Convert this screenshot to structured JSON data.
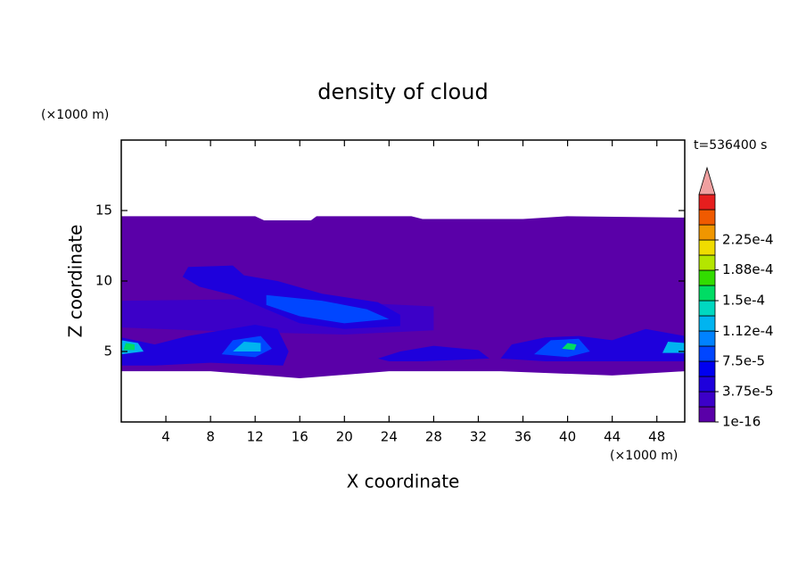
{
  "chart_data": {
    "type": "contour",
    "title": "density of cloud",
    "x_label": "X coordinate",
    "y_label": "Z coordinate",
    "x_unit": "(×1000 m)",
    "y_unit": "(×1000 m)",
    "time_label": "t=536400 s",
    "xlim": [
      0,
      50.5
    ],
    "ylim": [
      0,
      20
    ],
    "xticks": [
      4,
      8,
      12,
      16,
      20,
      24,
      28,
      32,
      36,
      40,
      44,
      48
    ],
    "yticks": [
      5,
      10,
      15
    ],
    "colorbar_ticks": [
      {
        "value": 1e-16,
        "label": "1e-16"
      },
      {
        "value": 3.75e-05,
        "label": "3.75e-5"
      },
      {
        "value": 7.5e-05,
        "label": "7.5e-5"
      },
      {
        "value": 0.000112,
        "label": "1.12e-4"
      },
      {
        "value": 0.00015,
        "label": "1.5e-4"
      },
      {
        "value": 0.000188,
        "label": "1.88e-4"
      },
      {
        "value": 0.000225,
        "label": "2.25e-4"
      }
    ],
    "colors": [
      "#5a00a8",
      "#3c00c8",
      "#1e00dc",
      "#0000f0",
      "#0046ff",
      "#0082ff",
      "#00b4f0",
      "#00d8c0",
      "#00dc64",
      "#32dc00",
      "#b4e600",
      "#f0dc00",
      "#f09600",
      "#f05a00",
      "#e61e1e"
    ],
    "over_color": "#f0a0a0",
    "regions": [
      {
        "value": 1e-16,
        "points": [
          [
            0,
            3.6
          ],
          [
            0,
            14.6
          ],
          [
            12,
            14.6
          ],
          [
            12.8,
            14.3
          ],
          [
            17,
            14.3
          ],
          [
            17.5,
            14.6
          ],
          [
            26,
            14.6
          ],
          [
            27,
            14.4
          ],
          [
            36,
            14.4
          ],
          [
            40,
            14.6
          ],
          [
            50.5,
            14.5
          ],
          [
            50.5,
            3.6
          ],
          [
            44,
            3.3
          ],
          [
            34,
            3.6
          ],
          [
            24,
            3.6
          ],
          [
            16,
            3.1
          ],
          [
            8,
            3.6
          ],
          [
            0,
            3.6
          ]
        ]
      },
      {
        "value": 1.875e-05,
        "points": [
          [
            0,
            6.7
          ],
          [
            0,
            8.6
          ],
          [
            10,
            8.7
          ],
          [
            20,
            8.5
          ],
          [
            28,
            8.2
          ],
          [
            28,
            6.5
          ],
          [
            20,
            6.2
          ],
          [
            10,
            6.4
          ]
        ]
      },
      {
        "value": 3.75e-05,
        "points": [
          [
            5.5,
            10.3
          ],
          [
            6,
            11
          ],
          [
            10,
            11.1
          ],
          [
            11,
            10.4
          ],
          [
            14,
            10
          ],
          [
            18,
            9.1
          ],
          [
            23,
            8.5
          ],
          [
            25,
            7.6
          ],
          [
            25,
            6.8
          ],
          [
            20,
            6.6
          ],
          [
            16,
            7
          ],
          [
            13,
            8
          ],
          [
            10,
            9
          ],
          [
            7,
            9.6
          ]
        ]
      },
      {
        "value": 3.75e-05,
        "points": [
          [
            0,
            4
          ],
          [
            0,
            6
          ],
          [
            3,
            5.5
          ],
          [
            6,
            6.1
          ],
          [
            9,
            6.5
          ],
          [
            12,
            6.9
          ],
          [
            14,
            6.6
          ],
          [
            15,
            5
          ],
          [
            14.5,
            4
          ],
          [
            8,
            4.2
          ],
          [
            3,
            4
          ]
        ]
      },
      {
        "value": 3.75e-05,
        "points": [
          [
            23,
            4.5
          ],
          [
            25,
            5
          ],
          [
            28,
            5.4
          ],
          [
            32,
            5.1
          ],
          [
            33,
            4.5
          ],
          [
            27,
            4.3
          ],
          [
            24,
            4.3
          ]
        ]
      },
      {
        "value": 3.75e-05,
        "points": [
          [
            34,
            4.5
          ],
          [
            35,
            5.5
          ],
          [
            38,
            6
          ],
          [
            41,
            6.1
          ],
          [
            44,
            5.8
          ],
          [
            47,
            6.6
          ],
          [
            50.5,
            6.1
          ],
          [
            50.5,
            4.3
          ],
          [
            44,
            4.3
          ],
          [
            38,
            4.3
          ]
        ]
      },
      {
        "value": 7.5e-05,
        "points": [
          [
            13,
            9
          ],
          [
            18,
            8.6
          ],
          [
            22,
            8
          ],
          [
            24,
            7.3
          ],
          [
            20,
            7
          ],
          [
            16,
            7.5
          ],
          [
            13,
            8.3
          ]
        ]
      },
      {
        "value": 7.5e-05,
        "points": [
          [
            9,
            4.8
          ],
          [
            10,
            5.8
          ],
          [
            12.5,
            6.1
          ],
          [
            13.5,
            5.2
          ],
          [
            12,
            4.6
          ]
        ]
      },
      {
        "value": 7.5e-05,
        "points": [
          [
            37,
            4.8
          ],
          [
            38.5,
            5.8
          ],
          [
            41,
            5.9
          ],
          [
            42,
            5
          ],
          [
            40,
            4.6
          ]
        ]
      },
      {
        "value": 0.0001125,
        "points": [
          [
            0,
            4.8
          ],
          [
            0,
            5.8
          ],
          [
            1.5,
            5.6
          ],
          [
            2,
            5
          ]
        ]
      },
      {
        "value": 0.0001125,
        "points": [
          [
            10,
            5
          ],
          [
            11,
            5.7
          ],
          [
            12.5,
            5.6
          ],
          [
            12.5,
            5
          ]
        ]
      },
      {
        "value": 0.0001125,
        "points": [
          [
            48.5,
            4.9
          ],
          [
            49,
            5.7
          ],
          [
            50.5,
            5.6
          ],
          [
            50.5,
            4.9
          ]
        ]
      },
      {
        "value": 0.00015,
        "points": [
          [
            0.2,
            5.1
          ],
          [
            0.4,
            5.6
          ],
          [
            1.2,
            5.5
          ],
          [
            1.2,
            5.1
          ]
        ]
      },
      {
        "value": 0.00015,
        "points": [
          [
            39.5,
            5.2
          ],
          [
            40,
            5.6
          ],
          [
            40.8,
            5.5
          ],
          [
            40.6,
            5.1
          ]
        ]
      }
    ]
  }
}
